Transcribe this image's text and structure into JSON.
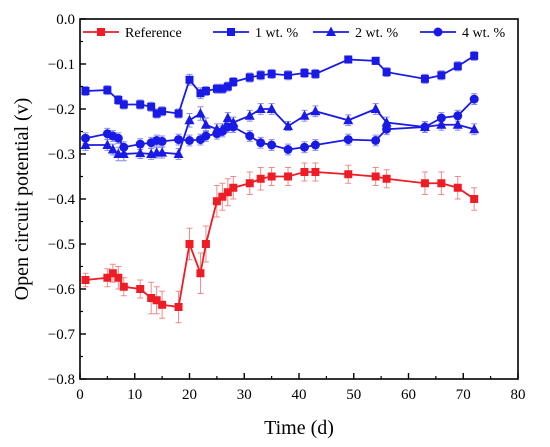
{
  "chart_data": {
    "type": "line",
    "xlabel": "Time (d)",
    "ylabel": "Open circuit potential (v)",
    "xlim": [
      0,
      80
    ],
    "ylim": [
      -0.8,
      0.0
    ],
    "xticks": [
      0,
      10,
      20,
      30,
      40,
      50,
      60,
      70,
      80
    ],
    "yticks": [
      0.0,
      -0.1,
      -0.2,
      -0.3,
      -0.4,
      -0.5,
      -0.6,
      -0.7,
      -0.8
    ],
    "xtick_labels": [
      "0",
      "10",
      "20",
      "30",
      "40",
      "50",
      "60",
      "70",
      "80"
    ],
    "ytick_labels": [
      "0.0",
      "−0.1",
      "−0.2",
      "−0.3",
      "−0.4",
      "−0.5",
      "−0.6",
      "−0.7",
      "−0.8"
    ],
    "grid": false,
    "legend_position": "top",
    "series": [
      {
        "name": "Reference",
        "color": "#ee1c24",
        "marker": "square",
        "x": [
          1,
          5,
          6,
          7,
          8,
          11,
          13,
          14,
          15,
          18,
          20,
          22,
          23,
          25,
          26,
          27,
          28,
          31,
          33,
          35,
          38,
          41,
          43,
          49,
          54,
          56,
          63,
          66,
          69,
          72
        ],
        "y": [
          -0.58,
          -0.575,
          -0.565,
          -0.575,
          -0.595,
          -0.6,
          -0.62,
          -0.625,
          -0.635,
          -0.64,
          -0.5,
          -0.565,
          -0.5,
          -0.405,
          -0.395,
          -0.385,
          -0.375,
          -0.365,
          -0.355,
          -0.35,
          -0.35,
          -0.34,
          -0.34,
          -0.345,
          -0.35,
          -0.355,
          -0.365,
          -0.365,
          -0.375,
          -0.4
        ],
        "err": [
          0.015,
          0.02,
          0.02,
          0.025,
          0.02,
          0.02,
          0.035,
          0.03,
          0.03,
          0.035,
          0.035,
          0.045,
          0.04,
          0.035,
          0.03,
          0.03,
          0.025,
          0.025,
          0.025,
          0.02,
          0.02,
          0.02,
          0.02,
          0.02,
          0.02,
          0.02,
          0.025,
          0.025,
          0.025,
          0.025
        ]
      },
      {
        "name": "1 wt. %",
        "color": "#1a1ae6",
        "marker": "square",
        "x": [
          1,
          5,
          7,
          8,
          11,
          13,
          14,
          15,
          18,
          20,
          22,
          23,
          25,
          26,
          27,
          28,
          31,
          33,
          35,
          38,
          41,
          43,
          49,
          54,
          56,
          63,
          66,
          69,
          72
        ],
        "y": [
          -0.16,
          -0.158,
          -0.18,
          -0.19,
          -0.19,
          -0.195,
          -0.21,
          -0.205,
          -0.21,
          -0.135,
          -0.165,
          -0.16,
          -0.155,
          -0.155,
          -0.15,
          -0.14,
          -0.13,
          -0.125,
          -0.122,
          -0.125,
          -0.12,
          -0.122,
          -0.09,
          -0.093,
          -0.118,
          -0.133,
          -0.125,
          -0.105,
          -0.082
        ],
        "err": [
          0.01,
          0.01,
          0.01,
          0.01,
          0.01,
          0.01,
          0.01,
          0.01,
          0.01,
          0.012,
          0.012,
          0.01,
          0.01,
          0.01,
          0.01,
          0.01,
          0.01,
          0.01,
          0.01,
          0.01,
          0.01,
          0.01,
          0.008,
          0.008,
          0.01,
          0.01,
          0.01,
          0.01,
          0.01
        ]
      },
      {
        "name": "2 wt. %",
        "color": "#1a1ae6",
        "marker": "triangle",
        "x": [
          1,
          5,
          6,
          7,
          8,
          11,
          13,
          14,
          15,
          18,
          20,
          22,
          23,
          25,
          26,
          27,
          28,
          31,
          33,
          35,
          38,
          41,
          43,
          49,
          54,
          56,
          63,
          66,
          69,
          72
        ],
        "y": [
          -0.28,
          -0.28,
          -0.29,
          -0.3,
          -0.3,
          -0.298,
          -0.3,
          -0.297,
          -0.297,
          -0.3,
          -0.225,
          -0.21,
          -0.235,
          -0.245,
          -0.245,
          -0.22,
          -0.23,
          -0.215,
          -0.2,
          -0.2,
          -0.238,
          -0.215,
          -0.205,
          -0.225,
          -0.2,
          -0.23,
          -0.24,
          -0.235,
          -0.235,
          -0.245
        ],
        "err": [
          0.012,
          0.012,
          0.012,
          0.015,
          0.015,
          0.012,
          0.012,
          0.012,
          0.012,
          0.012,
          0.015,
          0.015,
          0.015,
          0.012,
          0.012,
          0.012,
          0.012,
          0.012,
          0.012,
          0.012,
          0.01,
          0.012,
          0.012,
          0.012,
          0.012,
          0.012,
          0.012,
          0.012,
          0.012,
          0.012
        ]
      },
      {
        "name": "4 wt. %",
        "color": "#1a1ae6",
        "marker": "circle",
        "x": [
          1,
          5,
          6,
          7,
          8,
          11,
          13,
          14,
          15,
          18,
          20,
          22,
          23,
          25,
          26,
          27,
          28,
          31,
          33,
          35,
          38,
          41,
          43,
          49,
          54,
          56,
          63,
          66,
          69,
          72
        ],
        "y": [
          -0.265,
          -0.255,
          -0.26,
          -0.265,
          -0.285,
          -0.278,
          -0.275,
          -0.27,
          -0.272,
          -0.268,
          -0.27,
          -0.268,
          -0.26,
          -0.255,
          -0.25,
          -0.24,
          -0.24,
          -0.26,
          -0.275,
          -0.28,
          -0.29,
          -0.285,
          -0.28,
          -0.268,
          -0.27,
          -0.245,
          -0.24,
          -0.22,
          -0.215,
          -0.178
        ],
        "err": [
          0.012,
          0.012,
          0.012,
          0.012,
          0.012,
          0.012,
          0.012,
          0.012,
          0.012,
          0.012,
          0.012,
          0.012,
          0.012,
          0.012,
          0.012,
          0.012,
          0.012,
          0.012,
          0.012,
          0.012,
          0.012,
          0.012,
          0.012,
          0.012,
          0.012,
          0.012,
          0.012,
          0.012,
          0.012,
          0.012
        ]
      }
    ]
  }
}
